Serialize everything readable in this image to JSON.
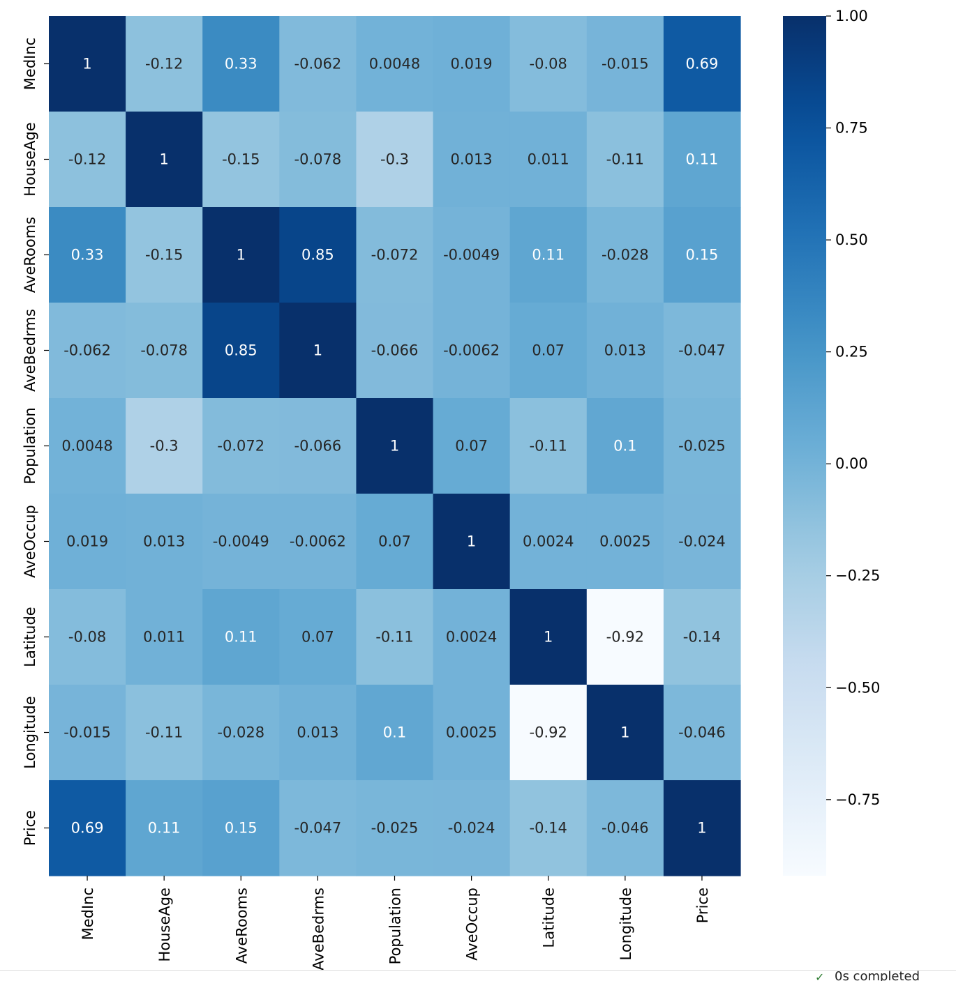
{
  "chart_data": {
    "type": "heatmap",
    "title": "",
    "xlabel": "",
    "ylabel": "",
    "rows": [
      "MedInc",
      "HouseAge",
      "AveRooms",
      "AveBedrms",
      "Population",
      "AveOccup",
      "Latitude",
      "Longitude",
      "Price"
    ],
    "columns": [
      "MedInc",
      "HouseAge",
      "AveRooms",
      "AveBedrms",
      "Population",
      "AveOccup",
      "Latitude",
      "Longitude",
      "Price"
    ],
    "cell_labels": [
      [
        "1",
        "-0.12",
        "0.33",
        "-0.062",
        "0.0048",
        "0.019",
        "-0.08",
        "-0.015",
        "0.69"
      ],
      [
        "-0.12",
        "1",
        "-0.15",
        "-0.078",
        "-0.3",
        "0.013",
        "0.011",
        "-0.11",
        "0.11"
      ],
      [
        "0.33",
        "-0.15",
        "1",
        "0.85",
        "-0.072",
        "-0.0049",
        "0.11",
        "-0.028",
        "0.15"
      ],
      [
        "-0.062",
        "-0.078",
        "0.85",
        "1",
        "-0.066",
        "-0.0062",
        "0.07",
        "0.013",
        "-0.047"
      ],
      [
        "0.0048",
        "-0.3",
        "-0.072",
        "-0.066",
        "1",
        "0.07",
        "-0.11",
        "0.1",
        "-0.025"
      ],
      [
        "0.019",
        "0.013",
        "-0.0049",
        "-0.0062",
        "0.07",
        "1",
        "0.0024",
        "0.0025",
        "-0.024"
      ],
      [
        "-0.08",
        "0.011",
        "0.11",
        "0.07",
        "-0.11",
        "0.0024",
        "1",
        "-0.92",
        "-0.14"
      ],
      [
        "-0.015",
        "-0.11",
        "-0.028",
        "0.013",
        "0.1",
        "0.0025",
        "-0.92",
        "1",
        "-0.046"
      ],
      [
        "0.69",
        "0.11",
        "0.15",
        "-0.047",
        "-0.025",
        "-0.024",
        "-0.14",
        "-0.046",
        "1"
      ]
    ],
    "value_range": [
      -0.92,
      1.0
    ],
    "colormap": "Blues",
    "colorbar": {
      "ticks": [
        "1.00",
        "0.75",
        "0.50",
        "0.25",
        "0.00",
        "−0.25",
        "−0.50",
        "−0.75"
      ],
      "tick_values": [
        1.0,
        0.75,
        0.5,
        0.25,
        0.0,
        -0.25,
        -0.5,
        -0.75
      ]
    },
    "annotation_colors": {
      "dark_text": "#262626",
      "light_text": "#ffffff"
    },
    "grid": false,
    "legend": "colorbar-right"
  },
  "status": {
    "icon": "check-icon",
    "text": "0s   completed"
  }
}
